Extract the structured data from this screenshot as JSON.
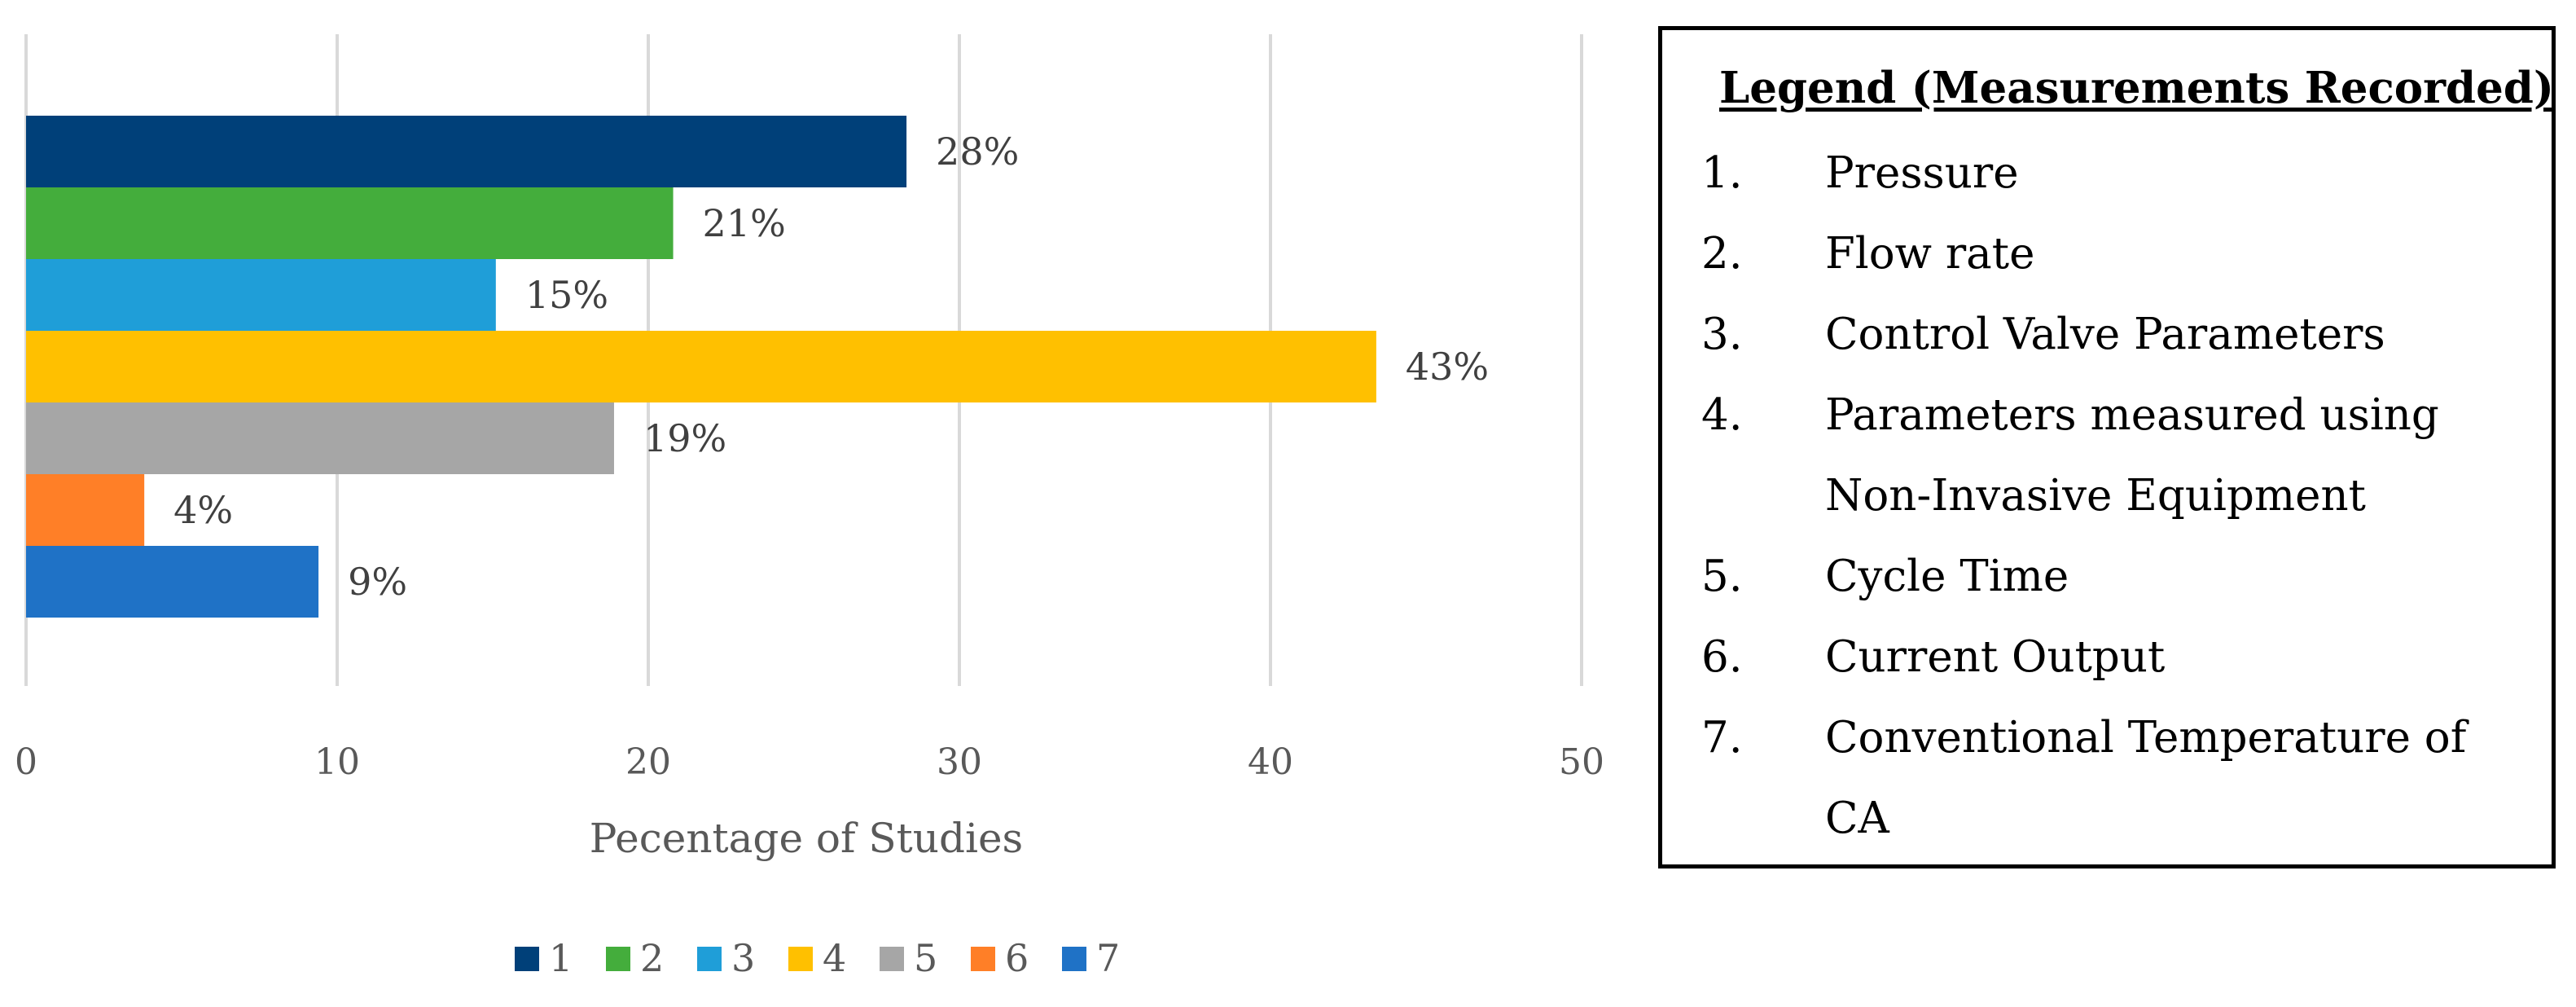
{
  "chart_data": {
    "type": "bar",
    "orientation": "horizontal",
    "categories": [
      "1",
      "2",
      "3",
      "4",
      "5",
      "6",
      "7"
    ],
    "values": [
      28.3,
      20.8,
      15.1,
      43.4,
      18.9,
      3.8,
      9.4
    ],
    "data_labels": [
      "28%",
      "21%",
      "15%",
      "43%",
      "19%",
      "4%",
      "9%"
    ],
    "colors": [
      "#004079",
      "#44ad3c",
      "#1f9ed8",
      "#ffc000",
      "#a6a6a6",
      "#ff7f27",
      "#1f72c6"
    ],
    "xlabel": "Pecentage of Studies",
    "ylabel": "",
    "xlim": [
      0,
      50
    ],
    "x_ticks": [
      0,
      10,
      20,
      30,
      40,
      50
    ],
    "x_tick_labels": [
      "0",
      "10",
      "20",
      "30",
      "40",
      "50"
    ],
    "grid": true,
    "legend_position": "bottom",
    "legend_entries": [
      "1",
      "2",
      "3",
      "4",
      "5",
      "6",
      "7"
    ]
  },
  "legend_panel": {
    "title": "Legend (Measurements Recorded)",
    "items": [
      {
        "num": "1.",
        "text": "Pressure"
      },
      {
        "num": "2.",
        "text": "Flow rate"
      },
      {
        "num": "3.",
        "text": "Control Valve Parameters"
      },
      {
        "num": "4.",
        "text": "Parameters measured using Non-Invasive Equipment"
      },
      {
        "num": "5.",
        "text": "Cycle Time"
      },
      {
        "num": "6.",
        "text": "Current Output"
      },
      {
        "num": "7.",
        "text": "Conventional Temperature of CA"
      }
    ]
  }
}
